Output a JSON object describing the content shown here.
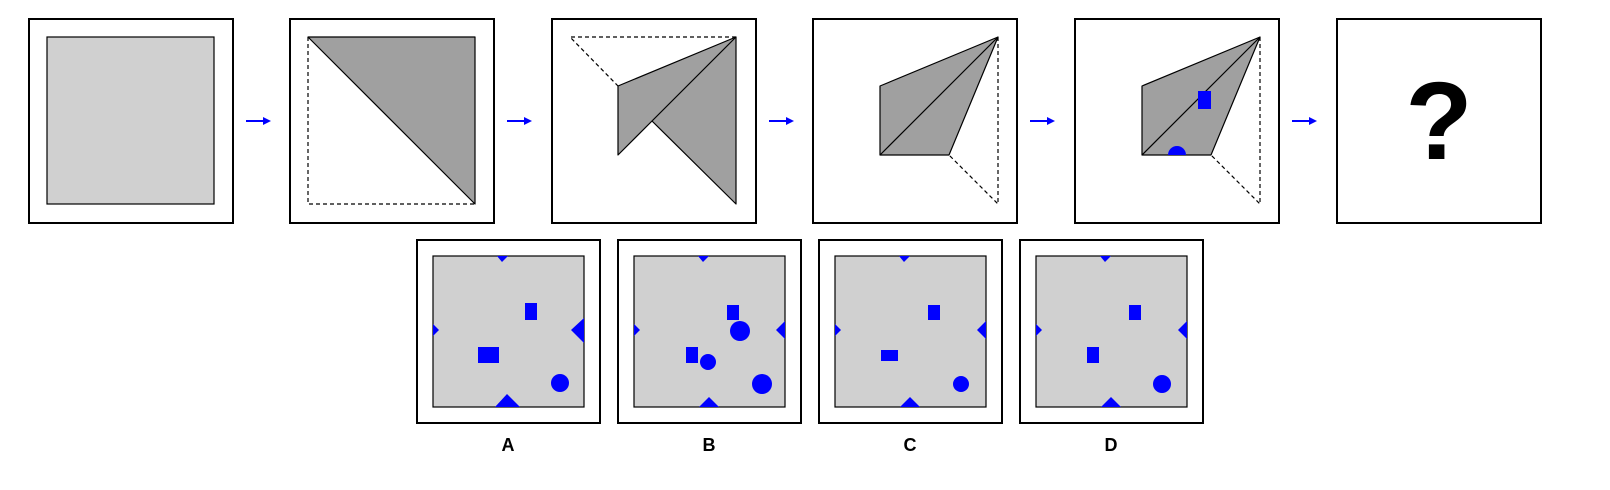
{
  "colors": {
    "paper": "#d0d0d0",
    "folded_paper": "#a0a0a0",
    "hole": "#0000ff",
    "arrow": "#0000ff",
    "frame": "#000000"
  },
  "sequence": {
    "steps": [
      {
        "name": "unfolded-square"
      },
      {
        "name": "fold-diagonal"
      },
      {
        "name": "fold-top-corner"
      },
      {
        "name": "fold-bottom-corner"
      },
      {
        "name": "punch-holes",
        "holes": [
          "square-hole",
          "circle-hole"
        ]
      }
    ],
    "question_mark": "?"
  },
  "options": [
    {
      "label": "A"
    },
    {
      "label": "B"
    },
    {
      "label": "C"
    },
    {
      "label": "D"
    }
  ]
}
